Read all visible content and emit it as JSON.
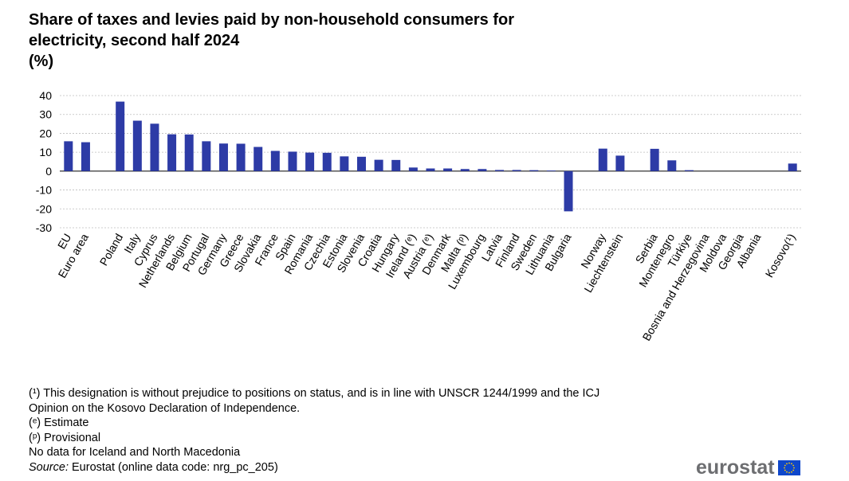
{
  "title": {
    "line1": "Share of taxes and levies paid by non-household consumers for",
    "line2": "electricity, second half 2024",
    "unit": "(%)"
  },
  "chart_data": {
    "type": "bar",
    "title": "Share of taxes and levies paid by non-household consumers for electricity, second half 2024",
    "ylabel": "%",
    "ylim": [
      -30,
      40
    ],
    "yticks": [
      40,
      30,
      20,
      10,
      0,
      -10,
      -20,
      -30
    ],
    "grid": true,
    "series_color": "#2d3ba6",
    "categories": [
      "EU",
      "Euro area",
      "",
      "Poland",
      "Italy",
      "Cyprus",
      "Netherlands",
      "Belgium",
      "Portugal",
      "Germany",
      "Greece",
      "Slovakia",
      "France",
      "Spain",
      "Romania",
      "Czechia",
      "Estonia",
      "Slovenia",
      "Croatia",
      "Hungary",
      "Ireland (ᵉ)",
      "Austria (ᵉ)",
      "Denmark",
      "Malta (ᵖ)",
      "Luxembourg",
      "Latvia",
      "Finland",
      "Sweden",
      "Lithuania",
      "Bulgaria",
      "",
      "Norway",
      "Liechtenstein",
      "",
      "Serbia",
      "Montenegro",
      "Türkiye",
      "Bosnia and Herzegovina",
      "Moldova",
      "Georgia",
      "Albania",
      "",
      "Kosovo(¹)"
    ],
    "values": [
      15.8,
      15.3,
      null,
      36.8,
      26.7,
      25.1,
      19.5,
      19.4,
      15.8,
      14.6,
      14.5,
      12.8,
      10.7,
      10.3,
      9.8,
      9.7,
      7.8,
      7.6,
      6.0,
      5.9,
      1.9,
      1.4,
      1.4,
      1.1,
      1.1,
      0.6,
      0.6,
      0.5,
      0.3,
      -21.3,
      null,
      11.9,
      8.2,
      null,
      11.8,
      5.7,
      0.5,
      0,
      0,
      0,
      0,
      null,
      4.0
    ]
  },
  "notes": {
    "n1_line1": "(¹) This designation is without  prejudice to positions on status, and is in line with UNSCR 1244/1999 and the ICJ",
    "n1_line2": "Opinion on the Kosovo Declaration of Independence.",
    "estimate": "(ᵉ) Estimate",
    "provisional": "(ᵖ) Provisional",
    "nodata": "No data for Iceland and North Macedonia",
    "source_label": "Source:",
    "source_text": " Eurostat (online data code: nrg_pc_205)"
  },
  "logo": {
    "text": "eurostat",
    "flag_color": "#0e47cb",
    "star_color": "#ffcc00"
  }
}
